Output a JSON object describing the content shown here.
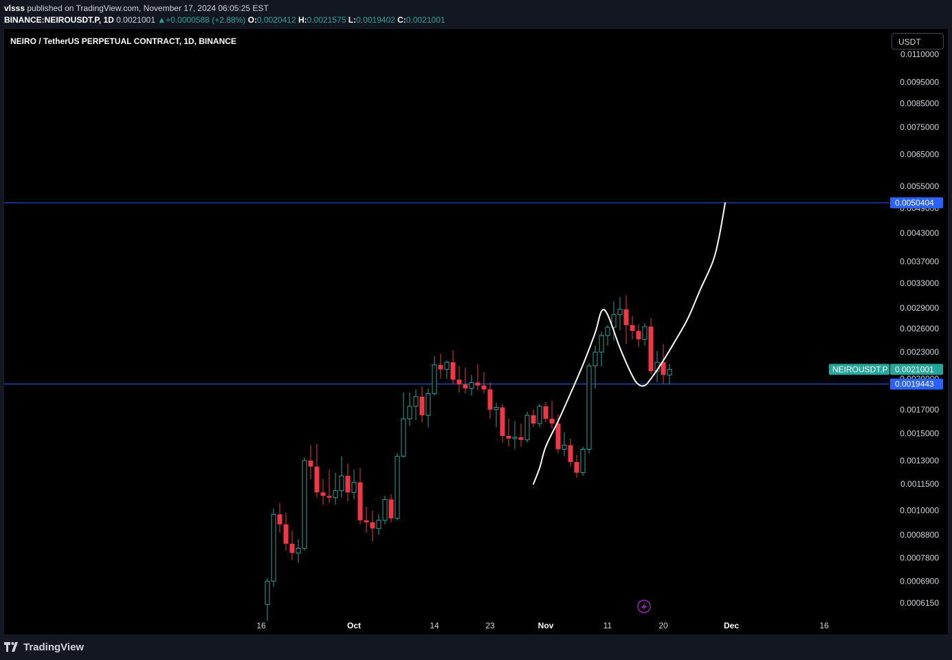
{
  "header": {
    "author": "vlsss",
    "published_text": "published on TradingView.com, November 17, 2024 06:05:25 EST",
    "symbol": "BINANCE:NEIROUSDT.P, 1D",
    "last": "0.0021001",
    "change": "+0.0000588 (+2.88%)",
    "o_label": "O:",
    "o_value": "0.0020412",
    "h_label": "H:",
    "h_value": "0.0021575",
    "l_label": "L:",
    "l_value": "0.0019402",
    "c_label": "C:",
    "c_value": "0.0021001"
  },
  "legend": {
    "title": "NEIRO / TetherUS PERPETUAL CONTRACT, 1D, BINANCE"
  },
  "currency_button": {
    "label": "USDT"
  },
  "footer": {
    "brand": "TradingView"
  },
  "colors": {
    "up": "#26a69a",
    "down": "#f23645",
    "hline": "#2962ff",
    "background": "#000000",
    "drawing": "#ffffff",
    "lightning": "#9c27b0"
  },
  "chart_data": {
    "type": "candlestick",
    "scale": "log",
    "interval": "1D",
    "y_tick_labels": [
      "0.0110000",
      "0.0095000",
      "0.0085000",
      "0.0075000",
      "0.0065000",
      "0.0055000",
      "0.0049000",
      "0.0043000",
      "0.0037000",
      "0.0033000",
      "0.0029000",
      "0.0026000",
      "0.0023000",
      "0.0020000",
      "0.0017000",
      "0.0015000",
      "0.0013000",
      "0.0011500",
      "0.0010000",
      "0.0008800",
      "0.0007800",
      "0.0006900",
      "0.0006150"
    ],
    "x_tick_labels": [
      {
        "label": "16",
        "date": "2024-09-16"
      },
      {
        "label": "Oct",
        "date": "2024-10-01"
      },
      {
        "label": "14",
        "date": "2024-10-14"
      },
      {
        "label": "23",
        "date": "2024-10-23"
      },
      {
        "label": "Nov",
        "date": "2024-11-01"
      },
      {
        "label": "11",
        "date": "2024-11-11"
      },
      {
        "label": "20",
        "date": "2024-11-20"
      },
      {
        "label": "Dec",
        "date": "2024-12-01"
      },
      {
        "label": "16",
        "date": "2024-12-16"
      }
    ],
    "start_date": "2024-09-17",
    "candles": [
      {
        "o": 0.00061,
        "h": 0.0007,
        "l": 0.00056,
        "c": 0.00069
      },
      {
        "o": 0.00069,
        "h": 0.00101,
        "l": 0.00067,
        "c": 0.00098
      },
      {
        "o": 0.00098,
        "h": 0.00104,
        "l": 0.00089,
        "c": 0.00093
      },
      {
        "o": 0.00093,
        "h": 0.00099,
        "l": 0.00081,
        "c": 0.00084
      },
      {
        "o": 0.00084,
        "h": 0.0009,
        "l": 0.00077,
        "c": 0.0008
      },
      {
        "o": 0.0008,
        "h": 0.00086,
        "l": 0.00076,
        "c": 0.00082
      },
      {
        "o": 0.00082,
        "h": 0.00132,
        "l": 0.00081,
        "c": 0.0013
      },
      {
        "o": 0.0013,
        "h": 0.00141,
        "l": 0.00118,
        "c": 0.00126
      },
      {
        "o": 0.00126,
        "h": 0.00142,
        "l": 0.00107,
        "c": 0.0011
      },
      {
        "o": 0.0011,
        "h": 0.00118,
        "l": 0.00103,
        "c": 0.00108
      },
      {
        "o": 0.00108,
        "h": 0.00124,
        "l": 0.00104,
        "c": 0.00107
      },
      {
        "o": 0.00107,
        "h": 0.00122,
        "l": 0.00103,
        "c": 0.00111
      },
      {
        "o": 0.00111,
        "h": 0.00133,
        "l": 0.00107,
        "c": 0.0012
      },
      {
        "o": 0.0012,
        "h": 0.00128,
        "l": 0.00105,
        "c": 0.0011
      },
      {
        "o": 0.0011,
        "h": 0.00124,
        "l": 0.00106,
        "c": 0.00116
      },
      {
        "o": 0.00116,
        "h": 0.00125,
        "l": 0.00093,
        "c": 0.00095
      },
      {
        "o": 0.00095,
        "h": 0.00102,
        "l": 0.00089,
        "c": 0.00094
      },
      {
        "o": 0.00094,
        "h": 0.001,
        "l": 0.00085,
        "c": 0.00091
      },
      {
        "o": 0.00091,
        "h": 0.00098,
        "l": 0.00088,
        "c": 0.00095
      },
      {
        "o": 0.00095,
        "h": 0.00108,
        "l": 0.00093,
        "c": 0.00106
      },
      {
        "o": 0.00106,
        "h": 0.00109,
        "l": 0.00094,
        "c": 0.00096
      },
      {
        "o": 0.00096,
        "h": 0.00135,
        "l": 0.00095,
        "c": 0.00133
      },
      {
        "o": 0.00133,
        "h": 0.00186,
        "l": 0.00132,
        "c": 0.00162
      },
      {
        "o": 0.00162,
        "h": 0.00186,
        "l": 0.00156,
        "c": 0.00173
      },
      {
        "o": 0.00173,
        "h": 0.00189,
        "l": 0.00161,
        "c": 0.00182
      },
      {
        "o": 0.00182,
        "h": 0.00192,
        "l": 0.00159,
        "c": 0.00165
      },
      {
        "o": 0.00165,
        "h": 0.0019,
        "l": 0.00155,
        "c": 0.00185
      },
      {
        "o": 0.00185,
        "h": 0.00225,
        "l": 0.00183,
        "c": 0.00215
      },
      {
        "o": 0.00215,
        "h": 0.00228,
        "l": 0.002,
        "c": 0.0021
      },
      {
        "o": 0.0021,
        "h": 0.0022,
        "l": 0.002,
        "c": 0.00218
      },
      {
        "o": 0.00218,
        "h": 0.00232,
        "l": 0.00194,
        "c": 0.00199
      },
      {
        "o": 0.00199,
        "h": 0.00214,
        "l": 0.00186,
        "c": 0.00194
      },
      {
        "o": 0.00194,
        "h": 0.00212,
        "l": 0.00185,
        "c": 0.0019
      },
      {
        "o": 0.0019,
        "h": 0.00204,
        "l": 0.00183,
        "c": 0.00196
      },
      {
        "o": 0.00196,
        "h": 0.00216,
        "l": 0.00188,
        "c": 0.00193
      },
      {
        "o": 0.00193,
        "h": 0.00207,
        "l": 0.00185,
        "c": 0.00189
      },
      {
        "o": 0.00189,
        "h": 0.00196,
        "l": 0.00162,
        "c": 0.0017
      },
      {
        "o": 0.0017,
        "h": 0.00176,
        "l": 0.00155,
        "c": 0.00172
      },
      {
        "o": 0.00172,
        "h": 0.00175,
        "l": 0.00143,
        "c": 0.00148
      },
      {
        "o": 0.00148,
        "h": 0.00162,
        "l": 0.0014,
        "c": 0.00146
      },
      {
        "o": 0.00146,
        "h": 0.0016,
        "l": 0.00138,
        "c": 0.00147
      },
      {
        "o": 0.00147,
        "h": 0.00158,
        "l": 0.0014,
        "c": 0.00145
      },
      {
        "o": 0.00145,
        "h": 0.00168,
        "l": 0.00143,
        "c": 0.00165
      },
      {
        "o": 0.00165,
        "h": 0.0017,
        "l": 0.00155,
        "c": 0.00158
      },
      {
        "o": 0.00158,
        "h": 0.00175,
        "l": 0.00155,
        "c": 0.00173
      },
      {
        "o": 0.00173,
        "h": 0.00177,
        "l": 0.00159,
        "c": 0.00162
      },
      {
        "o": 0.00162,
        "h": 0.00178,
        "l": 0.00154,
        "c": 0.00158
      },
      {
        "o": 0.00158,
        "h": 0.00166,
        "l": 0.00135,
        "c": 0.00138
      },
      {
        "o": 0.00138,
        "h": 0.00151,
        "l": 0.00133,
        "c": 0.00141
      },
      {
        "o": 0.00141,
        "h": 0.00146,
        "l": 0.00126,
        "c": 0.00129
      },
      {
        "o": 0.00129,
        "h": 0.00134,
        "l": 0.00119,
        "c": 0.00122
      },
      {
        "o": 0.00122,
        "h": 0.0014,
        "l": 0.0012,
        "c": 0.00138
      },
      {
        "o": 0.00138,
        "h": 0.00217,
        "l": 0.00135,
        "c": 0.00214
      },
      {
        "o": 0.00214,
        "h": 0.00238,
        "l": 0.0019,
        "c": 0.0023
      },
      {
        "o": 0.0023,
        "h": 0.00256,
        "l": 0.00213,
        "c": 0.00251
      },
      {
        "o": 0.00251,
        "h": 0.00265,
        "l": 0.00238,
        "c": 0.00262
      },
      {
        "o": 0.00262,
        "h": 0.003,
        "l": 0.00244,
        "c": 0.0028
      },
      {
        "o": 0.0028,
        "h": 0.00307,
        "l": 0.00258,
        "c": 0.00288
      },
      {
        "o": 0.00288,
        "h": 0.0031,
        "l": 0.0024,
        "c": 0.00265
      },
      {
        "o": 0.00265,
        "h": 0.00278,
        "l": 0.00246,
        "c": 0.00257
      },
      {
        "o": 0.00257,
        "h": 0.00266,
        "l": 0.00236,
        "c": 0.00246
      },
      {
        "o": 0.00246,
        "h": 0.00268,
        "l": 0.00238,
        "c": 0.00263
      },
      {
        "o": 0.00263,
        "h": 0.00275,
        "l": 0.00205,
        "c": 0.00208
      },
      {
        "o": 0.00208,
        "h": 0.00231,
        "l": 0.00196,
        "c": 0.00218
      },
      {
        "o": 0.00218,
        "h": 0.0024,
        "l": 0.00195,
        "c": 0.00204
      },
      {
        "o": 0.00204,
        "h": 0.00216,
        "l": 0.00194,
        "c": 0.0021
      }
    ],
    "horizontal_lines": [
      {
        "price": 0.0050404,
        "label": "0.0050404"
      },
      {
        "price": 0.0019443,
        "label": "0.0019443"
      }
    ],
    "last_price": {
      "symbol": "NEIROUSDT.P",
      "value": "0.0021001",
      "price": 0.0021001
    },
    "drawing": [
      {
        "date": "2024-10-30",
        "price": 0.00115
      },
      {
        "date": "2024-10-31",
        "price": 0.00125
      },
      {
        "date": "2024-11-01",
        "price": 0.0014
      },
      {
        "date": "2024-11-03",
        "price": 0.0016
      },
      {
        "date": "2024-11-05",
        "price": 0.00185
      },
      {
        "date": "2024-11-07",
        "price": 0.00215
      },
      {
        "date": "2024-11-09",
        "price": 0.00255
      },
      {
        "date": "2024-11-10",
        "price": 0.00285
      },
      {
        "date": "2024-11-11",
        "price": 0.0028
      },
      {
        "date": "2024-11-13",
        "price": 0.00235
      },
      {
        "date": "2024-11-15",
        "price": 0.00203
      },
      {
        "date": "2024-11-16",
        "price": 0.00194
      },
      {
        "date": "2024-11-17",
        "price": 0.00193
      },
      {
        "date": "2024-11-18",
        "price": 0.002
      },
      {
        "date": "2024-11-20",
        "price": 0.0022
      },
      {
        "date": "2024-11-22",
        "price": 0.00245
      },
      {
        "date": "2024-11-24",
        "price": 0.00275
      },
      {
        "date": "2024-11-26",
        "price": 0.0032
      },
      {
        "date": "2024-11-28",
        "price": 0.0037
      },
      {
        "date": "2024-11-29",
        "price": 0.0042
      },
      {
        "date": "2024-11-30",
        "price": 0.00504
      }
    ]
  }
}
